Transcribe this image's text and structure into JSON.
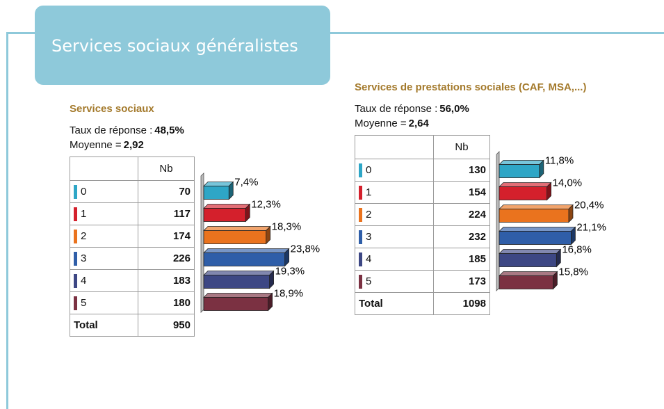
{
  "header": {
    "title": "Services sociaux généralistes"
  },
  "panels": [
    {
      "title": "Services sociaux",
      "response_label": "Taux de réponse :",
      "response_value": "48,5%",
      "mean_label": "Moyenne =",
      "mean_value": "2,92",
      "column_header": "Nb",
      "categories": [
        "0",
        "1",
        "2",
        "3",
        "4",
        "5"
      ],
      "counts": [
        70,
        117,
        174,
        226,
        183,
        180
      ],
      "total_label": "Total",
      "total": 950,
      "percentages": [
        7.4,
        12.3,
        18.3,
        23.8,
        19.3,
        18.9
      ],
      "percent_labels": [
        "7,4%",
        "12,3%",
        "18,3%",
        "23,8%",
        "19,3%",
        "18,9%"
      ],
      "colors": [
        "#2ea6c6",
        "#d4202c",
        "#ea731e",
        "#2f5ea8",
        "#3d4784",
        "#7b3142"
      ]
    },
    {
      "title": "Services de prestations sociales (CAF, MSA,...)",
      "response_label": "Taux de réponse :",
      "response_value": "56,0%",
      "mean_label": "Moyenne =",
      "mean_value": "2,64",
      "column_header": "Nb",
      "categories": [
        "0",
        "1",
        "2",
        "3",
        "4",
        "5"
      ],
      "counts": [
        130,
        154,
        224,
        232,
        185,
        173
      ],
      "total_label": "Total",
      "total": 1098,
      "percentages": [
        11.8,
        14.0,
        20.4,
        21.1,
        16.8,
        15.8
      ],
      "percent_labels": [
        "11,8%",
        "14,0%",
        "20,4%",
        "21,1%",
        "16,8%",
        "15,8%"
      ],
      "colors": [
        "#2ea6c6",
        "#d4202c",
        "#ea731e",
        "#2f5ea8",
        "#3d4784",
        "#7b3142"
      ]
    }
  ]
}
